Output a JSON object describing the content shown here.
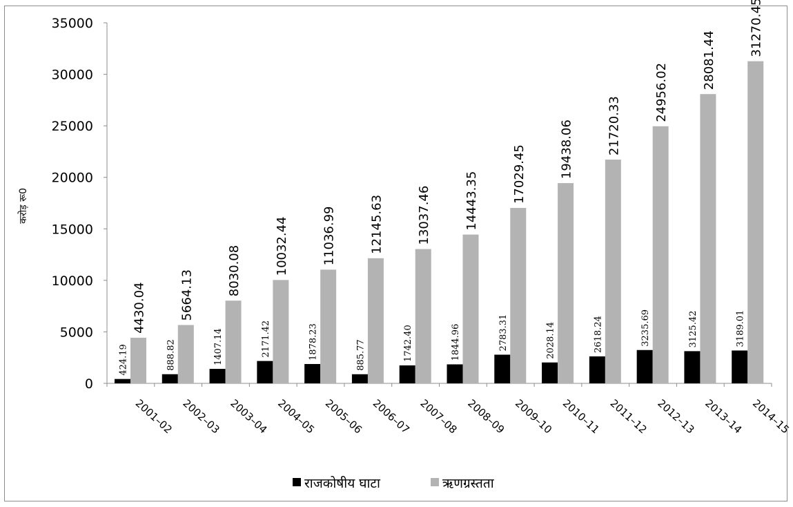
{
  "chart_data": {
    "type": "bar",
    "title": "",
    "xlabel": "",
    "ylabel": "करोड़ रू0",
    "ylim": [
      0,
      35000
    ],
    "yticks": [
      0,
      5000,
      10000,
      15000,
      20000,
      25000,
      30000,
      35000
    ],
    "grid": false,
    "legend_position": "bottom",
    "categories": [
      "2001–02",
      "2002–03",
      "2003–04",
      "2004–05",
      "2005–06",
      "2006–07",
      "2007–08",
      "2008–09",
      "2009–10",
      "2010–11",
      "2011–12",
      "2012–13",
      "2013–14",
      "2014–15"
    ],
    "series": [
      {
        "name": "राजकोषीय घाटा",
        "color": "#000000",
        "values": [
          424.19,
          888.82,
          1407.14,
          2171.42,
          1878.23,
          885.77,
          1742.4,
          1844.96,
          2783.31,
          2028.14,
          2618.24,
          3235.69,
          3125.42,
          3189.01
        ],
        "labels": [
          "424.19",
          "888.82",
          "1407.14",
          "2171.42",
          "1878.23",
          "885.77",
          "1742.40",
          "1844.96",
          "2783.31",
          "2028.14",
          "2618.24",
          "3235.69",
          "3125.42",
          "3189.01"
        ]
      },
      {
        "name": "ऋणग्रस्तता",
        "color": "#b3b3b3",
        "values": [
          4430.04,
          5664.13,
          8030.08,
          10032.44,
          11036.99,
          12145.63,
          13037.46,
          14443.35,
          17029.45,
          19438.06,
          21720.33,
          24956.02,
          28081.44,
          31270.45
        ],
        "labels": [
          "4430.04",
          "5664.13",
          "8030.08",
          "10032.44",
          "11036.99",
          "12145.63",
          "13037.46",
          "14443.35",
          "17029.45",
          "19438.06",
          "21720.33",
          "24956.02",
          "28081.44",
          "31270.45"
        ]
      }
    ]
  }
}
